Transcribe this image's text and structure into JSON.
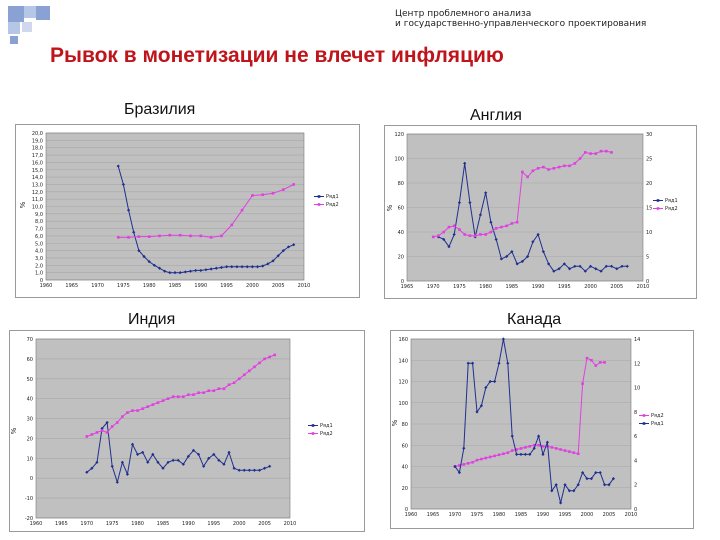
{
  "header": {
    "org_line1": "Центр проблемного анализа",
    "org_line2": "и государственно-управленческого проектирования",
    "title": "Рывок в монетизации не влечет инфляцию"
  },
  "colors": {
    "title": "#c0141b",
    "inflation": "#1f2f8f",
    "monetization": "#e040e0",
    "plot_bg": "#c0c0c0",
    "deco_blue": "#8aa1d4"
  },
  "chart_data": [
    {
      "country": "Бразилия",
      "type": "line",
      "ylabel": "%",
      "legend": [
        "Ряд1",
        "Ряд2"
      ],
      "xlim": [
        1960,
        2010
      ],
      "ylim": [
        0,
        20
      ],
      "xticks": [
        "1960",
        "1965",
        "1970",
        "1975",
        "1980",
        "1985",
        "1990",
        "1995",
        "2000",
        "2005",
        "2010"
      ],
      "yticks": [
        "0",
        "1,0",
        "2,0",
        "3,0",
        "4,0",
        "5,0",
        "6,0",
        "7,0",
        "8,0",
        "9,0",
        "10,0",
        "11,0",
        "12,0",
        "13,0",
        "14,0",
        "15,0",
        "16,0",
        "17,0",
        "18,0",
        "19,0",
        "20,0"
      ],
      "series": [
        {
          "name": "Ряд1",
          "color": "#1f2f8f",
          "x": [
            1974,
            1975,
            1976,
            1977,
            1978,
            1979,
            1980,
            1981,
            1982,
            1983,
            1984,
            1985,
            1986,
            1987,
            1988,
            1989,
            1990,
            1991,
            1992,
            1993,
            1994,
            1995,
            1996,
            1997,
            1998,
            1999,
            2000,
            2001,
            2002,
            2003,
            2004,
            2005,
            2006,
            2007,
            2008
          ],
          "y": [
            15.5,
            13.0,
            9.5,
            6.5,
            4.0,
            3.2,
            2.5,
            2.0,
            1.6,
            1.2,
            1.0,
            1.0,
            1.0,
            1.1,
            1.2,
            1.3,
            1.3,
            1.4,
            1.5,
            1.6,
            1.7,
            1.8,
            1.8,
            1.8,
            1.8,
            1.8,
            1.8,
            1.8,
            1.9,
            2.2,
            2.6,
            3.3,
            4.0,
            4.5,
            4.8
          ]
        },
        {
          "name": "Ряд2",
          "color": "#e040e0",
          "x": [
            1974,
            1976,
            1978,
            1980,
            1982,
            1984,
            1986,
            1988,
            1990,
            1992,
            1994,
            1996,
            1998,
            2000,
            2002,
            2004,
            2006,
            2008
          ],
          "y": [
            5.8,
            5.8,
            5.9,
            5.9,
            6.0,
            6.1,
            6.1,
            6.0,
            6.0,
            5.8,
            6.0,
            7.5,
            9.5,
            11.5,
            11.6,
            11.8,
            12.3,
            13.0
          ]
        }
      ]
    },
    {
      "country": "Англия",
      "type": "line",
      "ylabel": "%",
      "legend": [
        "Ряд1",
        "Ряд2"
      ],
      "xlim": [
        1965,
        2010
      ],
      "ylim": [
        0,
        120
      ],
      "xticks": [
        "1965",
        "1970",
        "1975",
        "1980",
        "1985",
        "1990",
        "1995",
        "2000",
        "2005",
        "2010"
      ],
      "yticks": [
        "0",
        "20",
        "40",
        "60",
        "80",
        "100",
        "120"
      ],
      "y2lim": [
        0,
        30
      ],
      "y2ticks": [
        "0",
        "5",
        "10",
        "15",
        "20",
        "25",
        "30"
      ],
      "series": [
        {
          "name": "Ряд1",
          "color": "#1f2f8f",
          "axis": "right",
          "x": [
            1971,
            1972,
            1973,
            1974,
            1975,
            1976,
            1977,
            1978,
            1979,
            1980,
            1981,
            1982,
            1983,
            1984,
            1985,
            1986,
            1987,
            1988,
            1989,
            1990,
            1991,
            1992,
            1993,
            1994,
            1995,
            1996,
            1997,
            1998,
            1999,
            2000,
            2001,
            2002,
            2003,
            2004,
            2005,
            2006,
            2007
          ],
          "y": [
            9.0,
            8.5,
            7.0,
            9.5,
            16.0,
            24.0,
            16.0,
            9.0,
            13.5,
            18.0,
            12.0,
            8.5,
            4.5,
            5.0,
            6.0,
            3.5,
            4.0,
            5.0,
            8.0,
            9.5,
            6.0,
            3.5,
            2.0,
            2.5,
            3.5,
            2.5,
            3.0,
            3.0,
            2.0,
            3.0,
            2.5,
            2.0,
            3.0,
            3.0,
            2.5,
            3.0,
            3.0
          ]
        },
        {
          "name": "Ряд2",
          "color": "#e040e0",
          "axis": "left",
          "x": [
            1970,
            1971,
            1972,
            1973,
            1974,
            1975,
            1976,
            1977,
            1978,
            1979,
            1980,
            1981,
            1982,
            1983,
            1984,
            1985,
            1986,
            1987,
            1988,
            1989,
            1990,
            1991,
            1992,
            1993,
            1994,
            1995,
            1996,
            1997,
            1998,
            1999,
            2000,
            2001,
            2002,
            2003,
            2004
          ],
          "y": [
            36,
            37,
            40,
            44,
            45,
            42,
            38,
            37,
            37,
            38,
            38,
            40,
            43,
            44,
            45,
            47,
            48,
            89,
            85,
            90,
            92,
            93,
            91,
            92,
            93,
            94,
            94,
            96,
            100,
            105,
            104,
            104,
            106,
            106,
            105
          ]
        }
      ]
    },
    {
      "country": "Индия",
      "type": "line",
      "ylabel": "%",
      "legend": [
        "Ряд1",
        "Ряд2"
      ],
      "xlim": [
        1960,
        2010
      ],
      "ylim": [
        -20,
        70
      ],
      "xticks": [
        "1960",
        "1965",
        "1970",
        "1975",
        "1980",
        "1985",
        "1990",
        "1995",
        "2000",
        "2005",
        "2010"
      ],
      "yticks": [
        "-20",
        "-10",
        "0",
        "10",
        "20",
        "30",
        "40",
        "50",
        "60",
        "70"
      ],
      "series": [
        {
          "name": "Ряд1",
          "color": "#1f2f8f",
          "x": [
            1970,
            1971,
            1972,
            1973,
            1974,
            1975,
            1976,
            1977,
            1978,
            1979,
            1980,
            1981,
            1982,
            1983,
            1984,
            1985,
            1986,
            1987,
            1988,
            1989,
            1990,
            1991,
            1992,
            1993,
            1994,
            1995,
            1996,
            1997,
            1998,
            1999,
            2000,
            2001,
            2002,
            2003,
            2004,
            2005,
            2006
          ],
          "y": [
            3,
            5,
            8,
            25,
            28,
            6,
            -2,
            8,
            2,
            17,
            12,
            13,
            8,
            12,
            8,
            5,
            8,
            9,
            9,
            7,
            11,
            14,
            12,
            6,
            10,
            12,
            9,
            7,
            13,
            5,
            4,
            4,
            4,
            4,
            4,
            5,
            6
          ]
        },
        {
          "name": "Ряд2",
          "color": "#e040e0",
          "x": [
            1970,
            1971,
            1972,
            1973,
            1974,
            1975,
            1976,
            1977,
            1978,
            1979,
            1980,
            1981,
            1982,
            1983,
            1984,
            1985,
            1986,
            1987,
            1988,
            1989,
            1990,
            1991,
            1992,
            1993,
            1994,
            1995,
            1996,
            1997,
            1998,
            1999,
            2000,
            2001,
            2002,
            2003,
            2004,
            2005,
            2006,
            2007
          ],
          "y": [
            21,
            22,
            23,
            24,
            23,
            26,
            28,
            31,
            33,
            34,
            34,
            35,
            36,
            37,
            38,
            39,
            40,
            41,
            41,
            41,
            42,
            42,
            43,
            43,
            44,
            44,
            45,
            45,
            47,
            48,
            50,
            52,
            54,
            56,
            58,
            60,
            61,
            62
          ]
        }
      ]
    },
    {
      "country": "Канада",
      "type": "line",
      "ylabel": "%",
      "legend": [
        "Ряд2",
        "Ряд1"
      ],
      "xlim": [
        1960,
        2010
      ],
      "ylim": [
        0,
        160
      ],
      "xticks": [
        "1960",
        "1965",
        "1970",
        "1975",
        "1980",
        "1985",
        "1990",
        "1995",
        "2000",
        "2005",
        "2010"
      ],
      "yticks": [
        "0",
        "20",
        "40",
        "60",
        "80",
        "100",
        "120",
        "140",
        "160"
      ],
      "y2lim": [
        0,
        14
      ],
      "y2ticks": [
        "0",
        "2",
        "4",
        "6",
        "8",
        "10",
        "12",
        "14"
      ],
      "series": [
        {
          "name": "Ряд2",
          "color": "#e040e0",
          "axis": "left",
          "x": [
            1970,
            1971,
            1972,
            1973,
            1974,
            1975,
            1976,
            1977,
            1978,
            1979,
            1980,
            1981,
            1982,
            1983,
            1984,
            1985,
            1986,
            1987,
            1988,
            1989,
            1990,
            1991,
            1992,
            1993,
            1994,
            1995,
            1996,
            1997,
            1998,
            1999,
            2000,
            2001,
            2002,
            2003,
            2004
          ],
          "y": [
            40,
            41,
            42,
            43,
            44,
            46,
            47,
            48,
            49,
            50,
            51,
            52,
            53,
            55,
            56,
            57,
            58,
            59,
            60,
            60,
            59,
            59,
            58,
            57,
            56,
            55,
            54,
            53,
            52,
            118,
            142,
            140,
            135,
            138,
            138
          ]
        },
        {
          "name": "Ряд1",
          "color": "#1f2f8f",
          "axis": "right",
          "x": [
            1970,
            1971,
            1972,
            1973,
            1974,
            1975,
            1976,
            1977,
            1978,
            1979,
            1980,
            1981,
            1982,
            1983,
            1984,
            1985,
            1986,
            1987,
            1988,
            1989,
            1990,
            1991,
            1992,
            1993,
            1994,
            1995,
            1996,
            1997,
            1998,
            1999,
            2000,
            2001,
            2002,
            2003,
            2004,
            2005,
            2006
          ],
          "y": [
            3.5,
            3.0,
            5.0,
            12.0,
            12.0,
            8.0,
            8.5,
            10.0,
            10.5,
            10.5,
            12.0,
            14.0,
            12.0,
            6.0,
            4.5,
            4.5,
            4.5,
            4.5,
            5.0,
            6.0,
            4.5,
            5.5,
            1.5,
            2.0,
            0.5,
            2.0,
            1.5,
            1.5,
            2.0,
            3.0,
            2.5,
            2.5,
            3.0,
            3.0,
            2.0,
            2.0,
            2.5
          ]
        }
      ]
    }
  ]
}
